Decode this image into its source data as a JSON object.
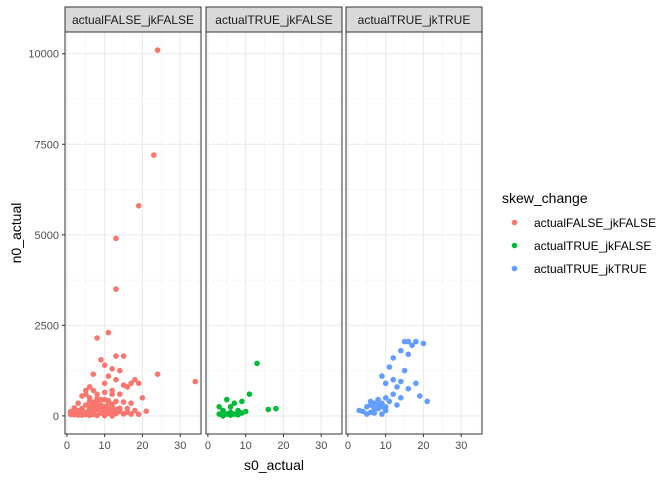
{
  "chart_data": {
    "type": "scatter",
    "xlabel": "s0_actual",
    "ylabel": "n0_actual",
    "xlim": [
      -0.5,
      35.5
    ],
    "ylim": [
      -500,
      10600
    ],
    "xticks": [
      0,
      10,
      20,
      30
    ],
    "yticks": [
      0,
      2500,
      5000,
      7500,
      10000
    ],
    "grid": true,
    "legend": {
      "title": "skew_change",
      "position": "right",
      "entries": [
        "actualFALSE_jkFALSE",
        "actualTRUE_jkFALSE",
        "actualTRUE_jkTRUE"
      ]
    },
    "colors": {
      "actualFALSE_jkFALSE": "#F8766D",
      "actualTRUE_jkFALSE": "#00BA38",
      "actualTRUE_jkTRUE": "#619CFF"
    },
    "facets": [
      {
        "title": "actualFALSE_jkFALSE",
        "series": "actualFALSE_jkFALSE",
        "points": [
          [
            24,
            10100
          ],
          [
            23,
            7200
          ],
          [
            19,
            5800
          ],
          [
            13,
            4900
          ],
          [
            13,
            3500
          ],
          [
            34,
            950
          ],
          [
            24,
            1150
          ],
          [
            11,
            2300
          ],
          [
            8,
            2150
          ],
          [
            13,
            1650
          ],
          [
            15,
            1650
          ],
          [
            9,
            1550
          ],
          [
            10,
            1400
          ],
          [
            12,
            1300
          ],
          [
            14,
            1250
          ],
          [
            7,
            1150
          ],
          [
            11,
            1100
          ],
          [
            13,
            1000
          ],
          [
            18,
            1000
          ],
          [
            17,
            900
          ],
          [
            19,
            900
          ],
          [
            15,
            850
          ],
          [
            16,
            800
          ],
          [
            5,
            700
          ],
          [
            7,
            700
          ],
          [
            10,
            650
          ],
          [
            12,
            600
          ],
          [
            14,
            600
          ],
          [
            20,
            500
          ],
          [
            4,
            550
          ],
          [
            6,
            500
          ],
          [
            8,
            480
          ],
          [
            9,
            450
          ],
          [
            11,
            420
          ],
          [
            13,
            400
          ],
          [
            15,
            380
          ],
          [
            17,
            350
          ],
          [
            3,
            350
          ],
          [
            5,
            300
          ],
          [
            7,
            280
          ],
          [
            9,
            260
          ],
          [
            10,
            250
          ],
          [
            12,
            230
          ],
          [
            14,
            210
          ],
          [
            16,
            200
          ],
          [
            2,
            220
          ],
          [
            4,
            200
          ],
          [
            6,
            180
          ],
          [
            8,
            170
          ],
          [
            10,
            150
          ],
          [
            12,
            140
          ],
          [
            18,
            150
          ],
          [
            21,
            130
          ],
          [
            1,
            120
          ],
          [
            3,
            110
          ],
          [
            5,
            100
          ],
          [
            7,
            90
          ],
          [
            9,
            80
          ],
          [
            11,
            70
          ],
          [
            13,
            60
          ],
          [
            15,
            55
          ],
          [
            17,
            50
          ],
          [
            19,
            45
          ],
          [
            1,
            40
          ],
          [
            2,
            30
          ],
          [
            3,
            25
          ],
          [
            4,
            20
          ],
          [
            6,
            15
          ],
          [
            8,
            10
          ],
          [
            10,
            5
          ],
          [
            12,
            0
          ],
          [
            5,
            600
          ],
          [
            6,
            400
          ],
          [
            8,
            350
          ],
          [
            9,
            300
          ],
          [
            11,
            350
          ],
          [
            4,
            120
          ],
          [
            6,
            60
          ],
          [
            7,
            40
          ],
          [
            9,
            120
          ],
          [
            10,
            30
          ],
          [
            3,
            80
          ],
          [
            2,
            70
          ],
          [
            14,
            120
          ],
          [
            16,
            100
          ],
          [
            6,
            800
          ],
          [
            8,
            600
          ],
          [
            12,
            700
          ],
          [
            10,
            900
          ],
          [
            6,
            250
          ],
          [
            8,
            230
          ],
          [
            12,
            320
          ],
          [
            13,
            180
          ],
          [
            11,
            200
          ],
          [
            7,
            150
          ],
          [
            9,
            200
          ],
          [
            5,
            40
          ],
          [
            4,
            70
          ],
          [
            3,
            150
          ],
          [
            10,
            450
          ],
          [
            7,
            380
          ]
        ]
      },
      {
        "title": "actualTRUE_jkFALSE",
        "series": "actualTRUE_jkFALSE",
        "points": [
          [
            13,
            1450
          ],
          [
            11,
            600
          ],
          [
            5,
            450
          ],
          [
            7,
            350
          ],
          [
            9,
            400
          ],
          [
            3,
            250
          ],
          [
            6,
            250
          ],
          [
            18,
            200
          ],
          [
            16,
            180
          ],
          [
            4,
            150
          ],
          [
            6,
            100
          ],
          [
            8,
            150
          ],
          [
            10,
            120
          ],
          [
            3,
            50
          ],
          [
            5,
            50
          ],
          [
            7,
            50
          ],
          [
            9,
            80
          ],
          [
            4,
            0
          ],
          [
            6,
            20
          ],
          [
            8,
            30
          ]
        ]
      },
      {
        "title": "actualTRUE_jkTRUE",
        "series": "actualTRUE_jkTRUE",
        "points": [
          [
            15,
            2050
          ],
          [
            16,
            2050
          ],
          [
            18,
            2050
          ],
          [
            20,
            2000
          ],
          [
            17,
            1950
          ],
          [
            14,
            1800
          ],
          [
            16,
            1700
          ],
          [
            12,
            1600
          ],
          [
            11,
            1350
          ],
          [
            15,
            1250
          ],
          [
            9,
            1100
          ],
          [
            12,
            1000
          ],
          [
            14,
            950
          ],
          [
            10,
            900
          ],
          [
            18,
            900
          ],
          [
            13,
            800
          ],
          [
            16,
            750
          ],
          [
            12,
            600
          ],
          [
            19,
            550
          ],
          [
            10,
            500
          ],
          [
            14,
            500
          ],
          [
            21,
            400
          ],
          [
            8,
            450
          ],
          [
            11,
            400
          ],
          [
            13,
            300
          ],
          [
            6,
            400
          ],
          [
            7,
            350
          ],
          [
            9,
            250
          ],
          [
            5,
            250
          ],
          [
            8,
            200
          ],
          [
            10,
            150
          ],
          [
            6,
            100
          ],
          [
            7,
            80
          ],
          [
            9,
            50
          ],
          [
            4,
            120
          ],
          [
            3,
            150
          ],
          [
            5,
            50
          ],
          [
            8,
            300
          ],
          [
            7,
            200
          ],
          [
            6,
            300
          ],
          [
            9,
            350
          ],
          [
            10,
            250
          ]
        ]
      }
    ]
  }
}
